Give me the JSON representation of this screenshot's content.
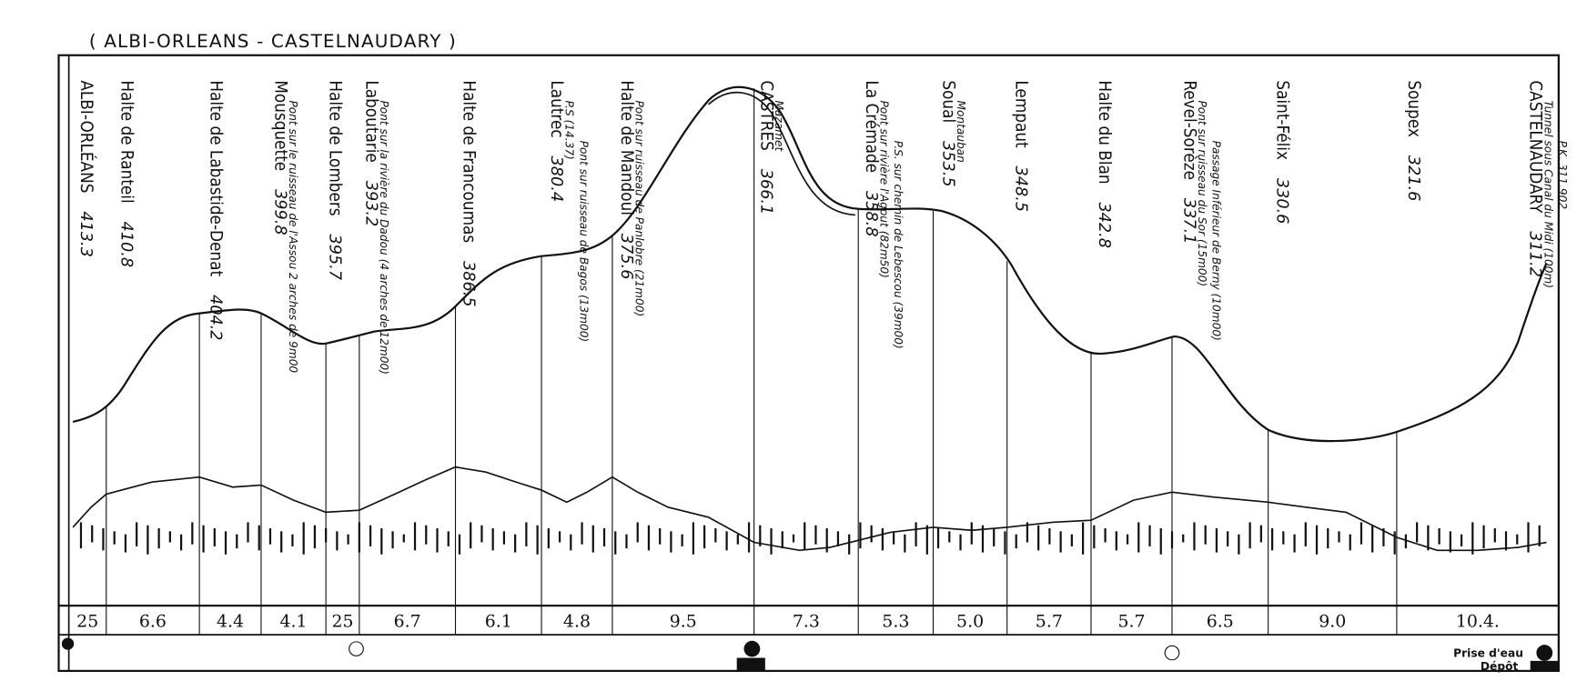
{
  "title": "( ALBI-ORLEANS - CASTELNAUDARY )",
  "stations": [
    {
      "name": "ALBI-ORLÉANS",
      "km": "413.3",
      "notes": []
    },
    {
      "name": "Halte de Ranteil",
      "km": "410.8",
      "notes": []
    },
    {
      "name": "Halte de Labastide-Denat",
      "km": "404.2",
      "notes": []
    },
    {
      "name": "Mousquette",
      "km": "399.8",
      "notes": [
        "Pont sur le ruisseau de l'Assou 2 arches de 9m00"
      ]
    },
    {
      "name": "Halte de Lombers",
      "km": "395.7",
      "notes": []
    },
    {
      "name": "Laboutarie",
      "km": "393.2",
      "notes": [
        "Pont sur la rivière du Dadou (4 arches de 12m00)"
      ]
    },
    {
      "name": "Halte de Francoumas",
      "km": "386.5",
      "notes": []
    },
    {
      "name": "Lautrec",
      "km": "380.4",
      "notes": [
        "P.S (14.37)",
        "Pont sur ruisseau de Bagos (13m00)"
      ]
    },
    {
      "name": "Halte de Mandoul",
      "km": "375.6",
      "notes": [
        "Pont sur ruisseau de Panlobre (21m00)"
      ]
    },
    {
      "name": "CASTRES",
      "km": "366.1",
      "notes": [
        "Mazamet"
      ]
    },
    {
      "name": "La Crémade",
      "km": "358.8",
      "notes": [
        "Pont sur rivière l'Agout (82m50)",
        "P.S. sur chemin de Lebescou (39m00)"
      ]
    },
    {
      "name": "Soual",
      "km": "353.5",
      "notes": [
        "Montauban"
      ]
    },
    {
      "name": "Lempaut",
      "km": "348.5",
      "notes": []
    },
    {
      "name": "Halte du Blan",
      "km": "342.8",
      "notes": []
    },
    {
      "name": "Revel-Sorèze",
      "km": "337.1",
      "notes": [
        "Pont sur ruisseau du Sor (15m00)",
        "Passage Inférieur de Berny (10m00)"
      ]
    },
    {
      "name": "Saint-Félix",
      "km": "330.6",
      "notes": []
    },
    {
      "name": "Soupex",
      "km": "321.6",
      "notes": []
    },
    {
      "name": "CASTELNAUDARY",
      "km": "311.2",
      "notes": [
        "Tunnel sous Canal du Midi (100m)",
        "P.K. 311.902"
      ]
    }
  ],
  "distances": [
    "25",
    "6.6",
    "4.4",
    "4.1",
    "25",
    "6.7",
    "6.1",
    "4.8",
    "9.5",
    "7.3",
    "5.3",
    "5.0",
    "5.7",
    "5.7",
    "6.5",
    "9.0",
    "10.4."
  ],
  "footer": [
    "Prise d'eau",
    "Dépôt"
  ]
}
